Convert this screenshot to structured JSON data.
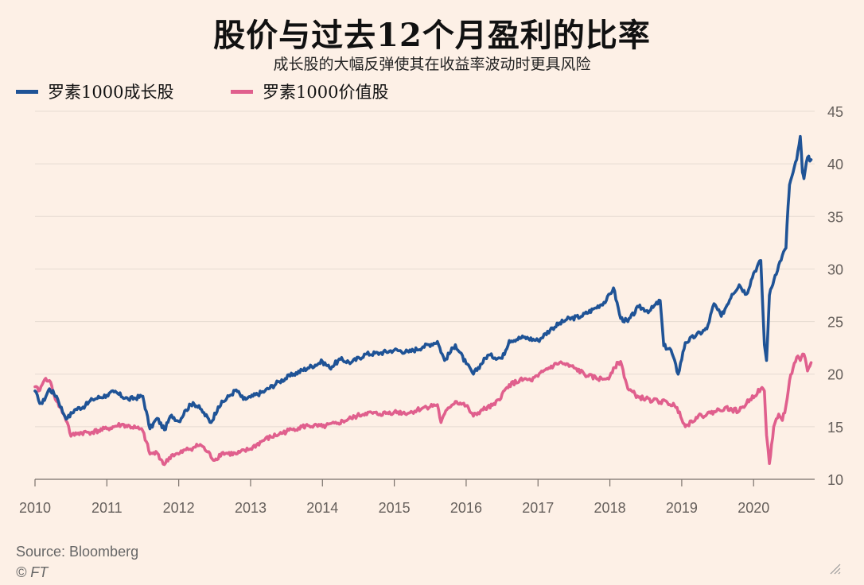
{
  "chart_data": {
    "type": "line",
    "title": "股价与过去12个月盈利的比率",
    "subtitle": "成长股的大幅反弹使其在收益率波动时更具风险",
    "xlabel": "",
    "ylabel": "",
    "xlim": [
      2010.0,
      2020.85
    ],
    "ylim": [
      10,
      45
    ],
    "y_ticks": [
      10,
      15,
      20,
      25,
      30,
      35,
      40,
      45
    ],
    "x_ticks": [
      "2010",
      "2011",
      "2012",
      "2013",
      "2014",
      "2015",
      "2016",
      "2017",
      "2018",
      "2019",
      "2020"
    ],
    "grid": true,
    "legend_position": "top-left",
    "series": [
      {
        "name": "罗素1000成长股",
        "color": "#1f5396",
        "x": [
          2010.0,
          2010.05,
          2010.1,
          2010.2,
          2010.3,
          2010.4,
          2010.45,
          2010.55,
          2010.7,
          2010.8,
          2011.0,
          2011.1,
          2011.3,
          2011.5,
          2011.6,
          2011.7,
          2011.8,
          2011.9,
          2012.0,
          2012.1,
          2012.2,
          2012.3,
          2012.45,
          2012.55,
          2012.7,
          2012.8,
          2012.9,
          2013.0,
          2013.2,
          2013.4,
          2013.6,
          2013.8,
          2014.0,
          2014.1,
          2014.25,
          2014.4,
          2014.6,
          2014.8,
          2015.0,
          2015.2,
          2015.4,
          2015.6,
          2015.7,
          2015.85,
          2016.0,
          2016.1,
          2016.3,
          2016.5,
          2016.6,
          2016.8,
          2017.0,
          2017.2,
          2017.4,
          2017.6,
          2017.8,
          2017.95,
          2018.05,
          2018.15,
          2018.25,
          2018.4,
          2018.55,
          2018.7,
          2018.75,
          2018.85,
          2018.95,
          2019.05,
          2019.2,
          2019.35,
          2019.45,
          2019.55,
          2019.7,
          2019.8,
          2019.9,
          2020.0,
          2020.1,
          2020.15,
          2020.18,
          2020.22,
          2020.3,
          2020.4,
          2020.45,
          2020.48,
          2020.5,
          2020.55,
          2020.6,
          2020.65,
          2020.68,
          2020.7,
          2020.75,
          2020.8
        ],
        "values": [
          18.4,
          17.5,
          17.2,
          18.6,
          17.9,
          16.2,
          15.8,
          16.6,
          17.0,
          17.6,
          18.0,
          18.3,
          17.6,
          17.9,
          14.8,
          15.8,
          14.7,
          16.1,
          15.5,
          16.6,
          17.3,
          16.7,
          15.4,
          16.9,
          17.9,
          18.5,
          17.6,
          17.8,
          18.4,
          19.3,
          20.0,
          20.6,
          21.2,
          20.6,
          21.4,
          21.1,
          21.9,
          22.0,
          22.3,
          22.1,
          22.6,
          23.1,
          21.3,
          22.8,
          21.0,
          20.0,
          21.8,
          21.5,
          23.2,
          23.5,
          23.2,
          24.4,
          25.2,
          25.5,
          26.3,
          27.0,
          28.2,
          25.3,
          25.0,
          26.4,
          26.0,
          27.0,
          22.7,
          22.3,
          20.0,
          23.0,
          23.7,
          24.3,
          26.7,
          25.5,
          27.6,
          28.5,
          27.6,
          29.6,
          30.8,
          22.8,
          21.3,
          27.5,
          29.4,
          31.3,
          32.0,
          36.0,
          38.0,
          39.2,
          40.4,
          42.6,
          39.2,
          38.6,
          40.6,
          40.4
        ]
      },
      {
        "name": "罗素1000价值股",
        "color": "#e05f8d",
        "x": [
          2010.0,
          2010.05,
          2010.1,
          2010.15,
          2010.2,
          2010.3,
          2010.4,
          2010.45,
          2010.5,
          2010.6,
          2010.8,
          2011.0,
          2011.2,
          2011.4,
          2011.5,
          2011.6,
          2011.7,
          2011.8,
          2011.9,
          2012.0,
          2012.1,
          2012.2,
          2012.3,
          2012.4,
          2012.5,
          2012.6,
          2012.8,
          2013.0,
          2013.2,
          2013.4,
          2013.6,
          2013.8,
          2014.0,
          2014.2,
          2014.4,
          2014.6,
          2014.8,
          2015.0,
          2015.2,
          2015.4,
          2015.6,
          2015.65,
          2015.75,
          2015.85,
          2016.0,
          2016.1,
          2016.2,
          2016.4,
          2016.6,
          2016.8,
          2016.9,
          2017.0,
          2017.1,
          2017.3,
          2017.5,
          2017.7,
          2017.9,
          2018.0,
          2018.05,
          2018.15,
          2018.25,
          2018.4,
          2018.6,
          2018.8,
          2018.9,
          2018.97,
          2019.05,
          2019.2,
          2019.4,
          2019.6,
          2019.7,
          2019.8,
          2019.95,
          2020.1,
          2020.15,
          2020.18,
          2020.22,
          2020.28,
          2020.35,
          2020.4,
          2020.45,
          2020.5,
          2020.55,
          2020.6,
          2020.65,
          2020.7,
          2020.75,
          2020.8
        ],
        "values": [
          18.8,
          18.4,
          19.0,
          19.6,
          19.4,
          17.4,
          16.2,
          15.4,
          14.1,
          14.4,
          14.5,
          14.8,
          15.2,
          14.9,
          14.6,
          12.4,
          12.5,
          11.4,
          12.3,
          12.4,
          12.8,
          13.0,
          13.3,
          12.6,
          11.8,
          12.5,
          12.4,
          12.9,
          13.8,
          14.3,
          14.8,
          15.1,
          15.0,
          15.3,
          15.8,
          16.3,
          16.2,
          16.4,
          16.3,
          16.8,
          17.1,
          15.4,
          16.8,
          17.4,
          17.0,
          16.0,
          16.5,
          17.1,
          19.0,
          19.5,
          19.4,
          19.8,
          20.4,
          21.1,
          20.6,
          19.8,
          19.5,
          19.8,
          20.6,
          21.2,
          18.6,
          17.8,
          17.5,
          17.3,
          17.0,
          16.4,
          15.0,
          15.9,
          16.3,
          16.8,
          16.6,
          16.5,
          17.6,
          18.6,
          18.4,
          14.2,
          11.5,
          15.0,
          16.2,
          15.6,
          17.0,
          19.4,
          20.6,
          21.6,
          21.3,
          21.9,
          20.3,
          21.1
        ]
      }
    ]
  },
  "source_text": "Source: Bloomberg",
  "copyright_text": "© FT"
}
